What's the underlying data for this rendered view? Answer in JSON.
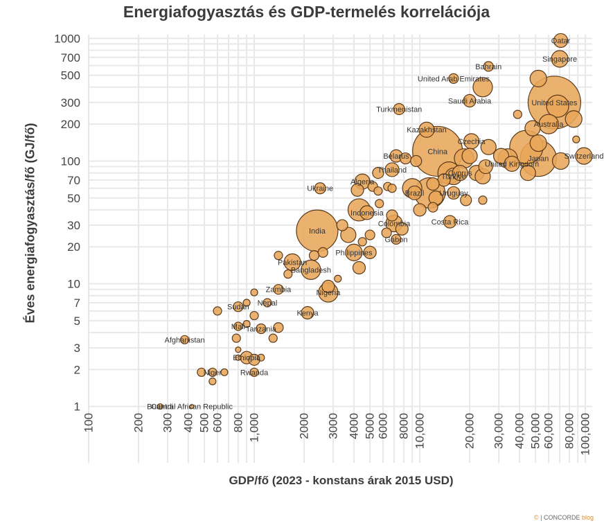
{
  "chart_data": {
    "type": "scatter",
    "title": "Energiafogyasztás és GDP-termelés korrelációja",
    "xlabel": "GDP/fő (2023 - konstans árak 2015 USD)",
    "ylabel": "Éves energiafogyasztás/fő (GJ/fő)",
    "xscale": "log",
    "yscale": "log",
    "xlim": [
      100,
      110000
    ],
    "ylim": [
      1,
      1000
    ],
    "xticks": [
      "100",
      "200",
      "300",
      "400",
      "500",
      "600",
      "800",
      "1,000",
      "2000",
      "3000",
      "4000",
      "5000",
      "6000",
      "8000",
      "10,000",
      "20,000",
      "30,000",
      "40,000",
      "50,000",
      "60,000",
      "80,000",
      "100,000"
    ],
    "xtick_values": [
      100,
      200,
      300,
      400,
      500,
      600,
      800,
      1000,
      2000,
      3000,
      4000,
      5000,
      6000,
      8000,
      10000,
      20000,
      30000,
      40000,
      50000,
      60000,
      80000,
      100000
    ],
    "yticks": [
      "1",
      "2",
      "3",
      "5",
      "7",
      "10",
      "20",
      "30",
      "50",
      "70",
      "100",
      "200",
      "300",
      "500",
      "700",
      "1000"
    ],
    "ytick_values": [
      1,
      2,
      3,
      5,
      7,
      10,
      20,
      30,
      50,
      70,
      100,
      200,
      300,
      500,
      700,
      1000
    ],
    "grid": true,
    "marker_color": "#e8a65a",
    "marker_edge_color": "#5a3a1a",
    "points": [
      {
        "x": 65000,
        "y": 300,
        "r": 38,
        "label": "United States"
      },
      {
        "x": 12800,
        "y": 120,
        "r": 36,
        "label": "China"
      },
      {
        "x": 2400,
        "y": 27,
        "r": 30,
        "label": "India"
      },
      {
        "x": 52000,
        "y": 105,
        "r": 26,
        "label": "Japan"
      },
      {
        "x": 44000,
        "y": 130,
        "r": 24
      },
      {
        "x": 11500,
        "y": 55,
        "r": 22
      },
      {
        "x": 15000,
        "y": 80,
        "r": 16
      },
      {
        "x": 9000,
        "y": 60,
        "r": 14
      },
      {
        "x": 18500,
        "y": 105,
        "r": 14
      },
      {
        "x": 34000,
        "y": 105,
        "r": 14
      },
      {
        "x": 98000,
        "y": 110,
        "r": 12,
        "label": "Switzerland"
      },
      {
        "x": 71000,
        "y": 100,
        "r": 12
      },
      {
        "x": 60000,
        "y": 200,
        "r": 14,
        "label": "Australia"
      },
      {
        "x": 68000,
        "y": 280,
        "r": 16
      },
      {
        "x": 85000,
        "y": 220,
        "r": 12
      },
      {
        "x": 71000,
        "y": 960,
        "r": 10,
        "label": "Qatar"
      },
      {
        "x": 70000,
        "y": 680,
        "r": 12,
        "label": "Singapore"
      },
      {
        "x": 52000,
        "y": 470,
        "r": 12
      },
      {
        "x": 24000,
        "y": 400,
        "r": 14
      },
      {
        "x": 26000,
        "y": 590,
        "r": 7,
        "label": "Bahrain"
      },
      {
        "x": 16000,
        "y": 470,
        "r": 7,
        "label": "United Arab Emirates"
      },
      {
        "x": 20000,
        "y": 310,
        "r": 9,
        "label": "Saudi Arabia"
      },
      {
        "x": 7500,
        "y": 265,
        "r": 8,
        "label": "Turkmenistan"
      },
      {
        "x": 11000,
        "y": 180,
        "r": 11,
        "label": "Kazakhstan"
      },
      {
        "x": 20500,
        "y": 145,
        "r": 11,
        "label": "Czechia"
      },
      {
        "x": 39000,
        "y": 240,
        "r": 6
      },
      {
        "x": 88000,
        "y": 150,
        "r": 5
      },
      {
        "x": 52000,
        "y": 140,
        "r": 12
      },
      {
        "x": 48000,
        "y": 185,
        "r": 11
      },
      {
        "x": 26000,
        "y": 130,
        "r": 11
      },
      {
        "x": 31000,
        "y": 110,
        "r": 11
      },
      {
        "x": 36000,
        "y": 95,
        "r": 11,
        "label": "United Kingdom"
      },
      {
        "x": 45000,
        "y": 80,
        "r": 11
      },
      {
        "x": 20000,
        "y": 110,
        "r": 11
      },
      {
        "x": 25000,
        "y": 90,
        "r": 10
      },
      {
        "x": 7200,
        "y": 110,
        "r": 9,
        "label": "Belarus"
      },
      {
        "x": 8200,
        "y": 105,
        "r": 8
      },
      {
        "x": 9500,
        "y": 100,
        "r": 8
      },
      {
        "x": 6800,
        "y": 85,
        "r": 10,
        "label": "Thailand"
      },
      {
        "x": 5600,
        "y": 80,
        "r": 8
      },
      {
        "x": 16000,
        "y": 75,
        "r": 12,
        "label": "Türkiye"
      },
      {
        "x": 17500,
        "y": 80,
        "r": 11,
        "label": "Cyprus"
      },
      {
        "x": 22000,
        "y": 80,
        "r": 11
      },
      {
        "x": 14000,
        "y": 70,
        "r": 9
      },
      {
        "x": 24000,
        "y": 75,
        "r": 11
      },
      {
        "x": 4500,
        "y": 68,
        "r": 11,
        "label": "Algeria"
      },
      {
        "x": 4200,
        "y": 58,
        "r": 9
      },
      {
        "x": 5200,
        "y": 62,
        "r": 7
      },
      {
        "x": 5600,
        "y": 57,
        "r": 6
      },
      {
        "x": 6400,
        "y": 62,
        "r": 6
      },
      {
        "x": 6800,
        "y": 60,
        "r": 6
      },
      {
        "x": 12000,
        "y": 65,
        "r": 9
      },
      {
        "x": 9300,
        "y": 55,
        "r": 10,
        "label": "Brazil"
      },
      {
        "x": 12500,
        "y": 50,
        "r": 10
      },
      {
        "x": 16000,
        "y": 55,
        "r": 9,
        "label": "Uruguay"
      },
      {
        "x": 19000,
        "y": 48,
        "r": 8
      },
      {
        "x": 24000,
        "y": 48,
        "r": 6
      },
      {
        "x": 2500,
        "y": 60,
        "r": 8,
        "label": "Ukraine"
      },
      {
        "x": 5700,
        "y": 45,
        "r": 6
      },
      {
        "x": 4800,
        "y": 38,
        "r": 10,
        "label": "Indonesia"
      },
      {
        "x": 4300,
        "y": 40,
        "r": 16
      },
      {
        "x": 6800,
        "y": 36,
        "r": 8
      },
      {
        "x": 10000,
        "y": 40,
        "r": 9
      },
      {
        "x": 12000,
        "y": 42,
        "r": 7
      },
      {
        "x": 7000,
        "y": 31,
        "r": 12,
        "label": "Colombia"
      },
      {
        "x": 15200,
        "y": 32,
        "r": 9,
        "label": "Costa Rica"
      },
      {
        "x": 7800,
        "y": 28,
        "r": 9
      },
      {
        "x": 3400,
        "y": 30,
        "r": 8
      },
      {
        "x": 3700,
        "y": 25,
        "r": 11
      },
      {
        "x": 5000,
        "y": 25,
        "r": 7
      },
      {
        "x": 6300,
        "y": 26,
        "r": 7
      },
      {
        "x": 7200,
        "y": 23,
        "r": 7,
        "label": "Gabon"
      },
      {
        "x": 4500,
        "y": 22,
        "r": 6
      },
      {
        "x": 4000,
        "y": 18,
        "r": 12,
        "label": "Philippines"
      },
      {
        "x": 5000,
        "y": 18,
        "r": 9
      },
      {
        "x": 2600,
        "y": 18,
        "r": 7
      },
      {
        "x": 2300,
        "y": 17,
        "r": 7
      },
      {
        "x": 1400,
        "y": 17,
        "r": 6
      },
      {
        "x": 1700,
        "y": 15,
        "r": 12,
        "label": "Pakistan"
      },
      {
        "x": 2200,
        "y": 13,
        "r": 14,
        "label": "Bangladesh"
      },
      {
        "x": 1600,
        "y": 12,
        "r": 6
      },
      {
        "x": 3200,
        "y": 11,
        "r": 5
      },
      {
        "x": 4300,
        "y": 13.5,
        "r": 9
      },
      {
        "x": 2800,
        "y": 9.5,
        "r": 9
      },
      {
        "x": 2800,
        "y": 8.5,
        "r": 14,
        "label": "Nigeria"
      },
      {
        "x": 1400,
        "y": 9,
        "r": 7,
        "label": "Zambia"
      },
      {
        "x": 1000,
        "y": 8.5,
        "r": 5
      },
      {
        "x": 900,
        "y": 7,
        "r": 5
      },
      {
        "x": 1200,
        "y": 7,
        "r": 6,
        "label": "Nepal"
      },
      {
        "x": 800,
        "y": 6.5,
        "r": 7,
        "label": "Sudan"
      },
      {
        "x": 600,
        "y": 6,
        "r": 6
      },
      {
        "x": 2100,
        "y": 5.8,
        "r": 9,
        "label": "Kenya"
      },
      {
        "x": 1000,
        "y": 5.5,
        "r": 6
      },
      {
        "x": 900,
        "y": 4.7,
        "r": 5
      },
      {
        "x": 800,
        "y": 4.5,
        "r": 6,
        "label": "Mali"
      },
      {
        "x": 1100,
        "y": 4.3,
        "r": 7,
        "label": "Tanzania"
      },
      {
        "x": 1400,
        "y": 4.4,
        "r": 7
      },
      {
        "x": 1300,
        "y": 3.6,
        "r": 6
      },
      {
        "x": 780,
        "y": 3.6,
        "r": 6
      },
      {
        "x": 380,
        "y": 3.5,
        "r": 6,
        "label": "Afghanistan"
      },
      {
        "x": 800,
        "y": 2.9,
        "r": 4
      },
      {
        "x": 800,
        "y": 2.5,
        "r": 4
      },
      {
        "x": 900,
        "y": 2.5,
        "r": 9,
        "label": "Ethiopia"
      },
      {
        "x": 1000,
        "y": 2.4,
        "r": 8
      },
      {
        "x": 1100,
        "y": 2.5,
        "r": 5
      },
      {
        "x": 480,
        "y": 1.9,
        "r": 6
      },
      {
        "x": 560,
        "y": 1.9,
        "r": 6,
        "label": "Niger"
      },
      {
        "x": 660,
        "y": 1.9,
        "r": 5
      },
      {
        "x": 560,
        "y": 1.6,
        "r": 5
      },
      {
        "x": 1000,
        "y": 1.9,
        "r": 6,
        "label": "Rwanda"
      },
      {
        "x": 270,
        "y": 1.0,
        "r": 4,
        "label": "Burundi"
      },
      {
        "x": 420,
        "y": 1.0,
        "r": 3,
        "label": "Central African Republic"
      }
    ]
  },
  "credit": {
    "mark": "©",
    "sep": "|",
    "brand": "CONCORDE",
    "suffix": "blog"
  }
}
